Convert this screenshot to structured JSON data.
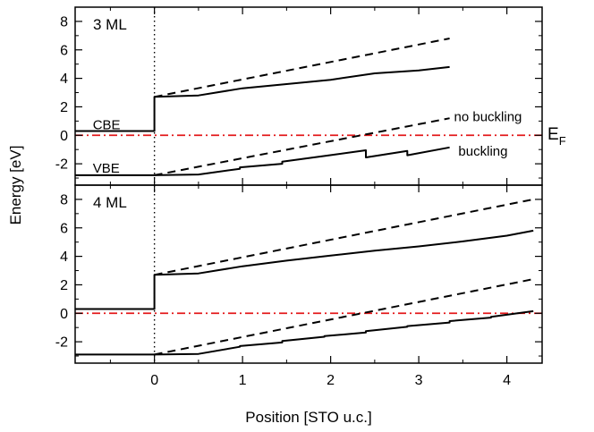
{
  "colors": {
    "fermi_line": "#e31a1c",
    "curve": "#000000"
  },
  "chart_data": {
    "type": "line",
    "xlabel": "Position [STO u.c.]",
    "ylabel": "Energy [eV]",
    "xlim": [
      -0.9,
      4.4
    ],
    "xticks": [
      0,
      1,
      2,
      3,
      4
    ],
    "fermi_label": "E",
    "fermi_sub": "F",
    "panels": [
      {
        "label": "3 ML",
        "ylim": [
          -3.5,
          9
        ],
        "yticks": [
          -2,
          0,
          2,
          4,
          6,
          8
        ],
        "fermi_level": 0,
        "annotations": [
          {
            "text": "CBE",
            "x": -0.7,
            "y": 0.75
          },
          {
            "text": "VBE",
            "x": -0.7,
            "y": -2.3
          },
          {
            "text": "no buckling",
            "x": 3.4,
            "y": 1.3
          },
          {
            "text": "buckling",
            "x": 3.45,
            "y": -1.1
          }
        ],
        "series": [
          {
            "style": "solid",
            "x": [
              -0.9,
              0,
              0,
              0.5,
              1,
              1.5,
              2,
              2.5,
              3,
              3.35
            ],
            "y": [
              0.3,
              0.3,
              2.7,
              2.8,
              3.3,
              3.6,
              3.9,
              4.35,
              4.55,
              4.8
            ]
          },
          {
            "style": "dashed",
            "x": [
              0,
              3.35
            ],
            "y": [
              2.7,
              6.8
            ]
          },
          {
            "style": "solid",
            "x": [
              -0.9,
              0,
              0.5,
              0.97,
              0.97,
              1.45,
              1.45,
              1.93,
              2.4,
              2.4,
              2.87,
              2.87,
              3.35
            ],
            "y": [
              -2.8,
              -2.8,
              -2.75,
              -2.35,
              -2.25,
              -2.0,
              -1.85,
              -1.45,
              -1.05,
              -1.55,
              -1.1,
              -1.4,
              -0.85
            ]
          },
          {
            "style": "dashed",
            "x": [
              0,
              3.35
            ],
            "y": [
              -2.8,
              1.2
            ]
          }
        ]
      },
      {
        "label": "4 ML",
        "ylim": [
          -3.5,
          9
        ],
        "yticks": [
          -2,
          0,
          2,
          4,
          6,
          8
        ],
        "fermi_level": 0,
        "annotations": [],
        "series": [
          {
            "style": "solid",
            "x": [
              -0.9,
              0,
              0,
              0.5,
              1,
              1.5,
              2,
              2.5,
              3,
              3.5,
              4,
              4.3
            ],
            "y": [
              0.3,
              0.3,
              2.7,
              2.8,
              3.3,
              3.7,
              4.05,
              4.4,
              4.7,
              5.05,
              5.45,
              5.8
            ]
          },
          {
            "style": "dashed",
            "x": [
              0,
              4.3
            ],
            "y": [
              2.7,
              8.0
            ]
          },
          {
            "style": "solid",
            "x": [
              -0.9,
              0,
              0.5,
              0.97,
              0.97,
              1.45,
              1.45,
              1.93,
              1.93,
              2.4,
              2.4,
              2.87,
              2.87,
              3.35,
              3.35,
              3.82,
              3.82,
              4.3
            ],
            "y": [
              -2.9,
              -2.9,
              -2.85,
              -2.35,
              -2.3,
              -2.05,
              -1.95,
              -1.65,
              -1.6,
              -1.35,
              -1.25,
              -0.95,
              -0.9,
              -0.65,
              -0.55,
              -0.3,
              -0.25,
              0.15
            ]
          },
          {
            "style": "dashed",
            "x": [
              0,
              4.3
            ],
            "y": [
              -2.9,
              2.4
            ]
          }
        ]
      }
    ]
  }
}
